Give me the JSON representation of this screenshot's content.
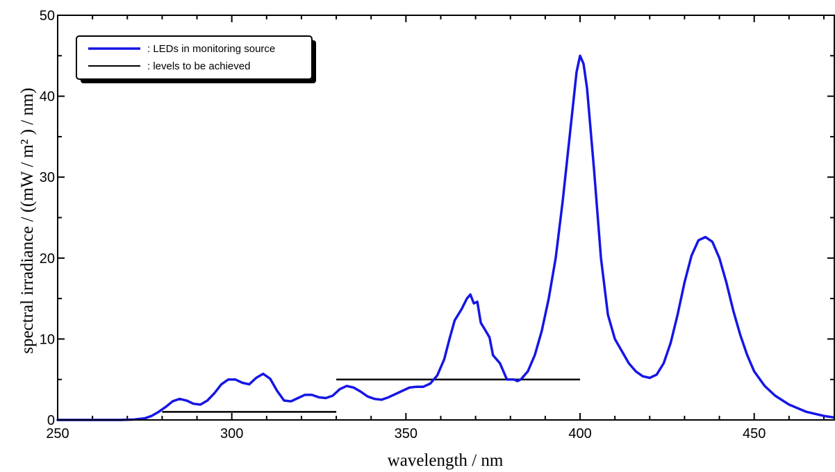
{
  "chart_data": {
    "type": "line",
    "xlabel": "wavelength / nm",
    "ylabel": "spectral irradiance / ((mW / m² ) / nm)",
    "xlim": [
      250,
      473
    ],
    "ylim": [
      0,
      50
    ],
    "xticks": [
      250,
      300,
      350,
      400,
      450
    ],
    "yticks": [
      0,
      10,
      20,
      30,
      40,
      50
    ],
    "x_minor_step": 10,
    "y_minor_step": 5,
    "grid": false,
    "legend_position": "top-left",
    "legend": [
      {
        "label": ": LEDs in monitoring source",
        "color": "#1515e6"
      },
      {
        "label": ": levels to be achieved",
        "color": "#000000"
      }
    ],
    "series": [
      {
        "label": ": LEDs in monitoring source",
        "color": "#1515e6",
        "points": [
          [
            250,
            0
          ],
          [
            268,
            0
          ],
          [
            272,
            0.05
          ],
          [
            275,
            0.2
          ],
          [
            277,
            0.5
          ],
          [
            279,
            1.0
          ],
          [
            281,
            1.6
          ],
          [
            283,
            2.3
          ],
          [
            285,
            2.6
          ],
          [
            287,
            2.4
          ],
          [
            289,
            2.0
          ],
          [
            291,
            1.9
          ],
          [
            293,
            2.4
          ],
          [
            295,
            3.3
          ],
          [
            297,
            4.4
          ],
          [
            299,
            5.0
          ],
          [
            301,
            5.0
          ],
          [
            303,
            4.6
          ],
          [
            305,
            4.4
          ],
          [
            307,
            5.2
          ],
          [
            309,
            5.7
          ],
          [
            311,
            5.1
          ],
          [
            313,
            3.6
          ],
          [
            315,
            2.4
          ],
          [
            317,
            2.3
          ],
          [
            319,
            2.7
          ],
          [
            321,
            3.1
          ],
          [
            323,
            3.1
          ],
          [
            325,
            2.8
          ],
          [
            327,
            2.7
          ],
          [
            329,
            3.0
          ],
          [
            331,
            3.8
          ],
          [
            333,
            4.2
          ],
          [
            335,
            4.0
          ],
          [
            337,
            3.5
          ],
          [
            339,
            2.9
          ],
          [
            341,
            2.6
          ],
          [
            343,
            2.5
          ],
          [
            345,
            2.8
          ],
          [
            347,
            3.2
          ],
          [
            349,
            3.6
          ],
          [
            351,
            4.0
          ],
          [
            353,
            4.1
          ],
          [
            355,
            4.1
          ],
          [
            357,
            4.5
          ],
          [
            359,
            5.5
          ],
          [
            361,
            7.5
          ],
          [
            362.5,
            10.0
          ],
          [
            364,
            12.3
          ],
          [
            366,
            13.7
          ],
          [
            367.5,
            15.0
          ],
          [
            368.5,
            15.5
          ],
          [
            369.5,
            14.4
          ],
          [
            370.5,
            14.6
          ],
          [
            371.5,
            12.0
          ],
          [
            372.5,
            11.3
          ],
          [
            374,
            10.2
          ],
          [
            375,
            8.0
          ],
          [
            376,
            7.5
          ],
          [
            377,
            7.0
          ],
          [
            378,
            6.0
          ],
          [
            379,
            5.0
          ],
          [
            380,
            5.0
          ],
          [
            381,
            5.0
          ],
          [
            382,
            4.8
          ],
          [
            383,
            5.0
          ],
          [
            385,
            6.0
          ],
          [
            387,
            8.0
          ],
          [
            389,
            11.0
          ],
          [
            391,
            15.0
          ],
          [
            393,
            20.0
          ],
          [
            395,
            27.0
          ],
          [
            397,
            35.0
          ],
          [
            399,
            43.0
          ],
          [
            400,
            45.0
          ],
          [
            401,
            44.0
          ],
          [
            402,
            41.0
          ],
          [
            404,
            31.0
          ],
          [
            406,
            20.0
          ],
          [
            408,
            13.0
          ],
          [
            410,
            10.0
          ],
          [
            412,
            8.5
          ],
          [
            414,
            7.0
          ],
          [
            416,
            6.0
          ],
          [
            418,
            5.4
          ],
          [
            420,
            5.2
          ],
          [
            422,
            5.6
          ],
          [
            424,
            7.0
          ],
          [
            426,
            9.5
          ],
          [
            428,
            13.0
          ],
          [
            430,
            17.0
          ],
          [
            432,
            20.3
          ],
          [
            434,
            22.2
          ],
          [
            436,
            22.6
          ],
          [
            438,
            22.0
          ],
          [
            440,
            20.0
          ],
          [
            442,
            17.0
          ],
          [
            444,
            13.5
          ],
          [
            446,
            10.5
          ],
          [
            448,
            8.0
          ],
          [
            450,
            6.0
          ],
          [
            453,
            4.2
          ],
          [
            456,
            3.0
          ],
          [
            460,
            1.9
          ],
          [
            465,
            1.0
          ],
          [
            470,
            0.5
          ],
          [
            473,
            0.3
          ]
        ]
      }
    ],
    "levels": [
      {
        "label": ": levels to be achieved",
        "x_start": 280,
        "x_end": 330,
        "y": 1
      },
      {
        "label": ": levels to be achieved",
        "x_start": 330,
        "x_end": 400,
        "y": 5
      }
    ]
  }
}
